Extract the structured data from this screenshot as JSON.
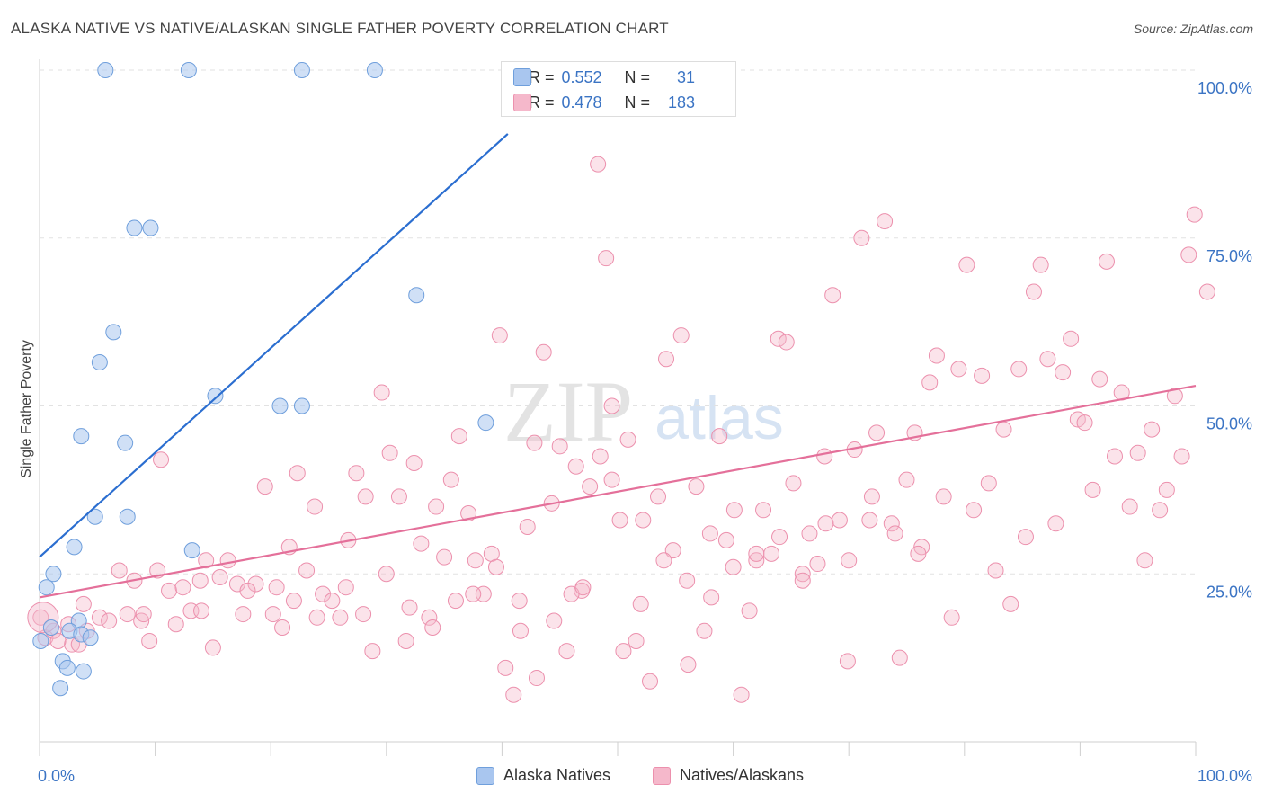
{
  "title": "ALASKA NATIVE VS NATIVE/ALASKAN SINGLE FATHER POVERTY CORRELATION CHART",
  "source": "Source: ZipAtlas.com",
  "watermark": {
    "zip": "ZIP",
    "atlas": "atlas"
  },
  "legend": {
    "r_label": "R =",
    "n_label": "N =",
    "rows": [
      {
        "r": "0.552",
        "n": "31"
      },
      {
        "r": "0.478",
        "n": "183"
      }
    ]
  },
  "colors": {
    "blue_fill": "#a9c6ef",
    "blue_stroke": "#6f9fdc",
    "blue_line": "#2b6ed0",
    "pink_fill": "#f5b8cb",
    "pink_stroke": "#ec90ad",
    "pink_line": "#e4709a",
    "tick_label": "#3b74c4"
  },
  "chart_data": {
    "type": "scatter",
    "title": "ALASKA NATIVE VS NATIVE/ALASKAN SINGLE FATHER POVERTY CORRELATION CHART",
    "xlabel": "",
    "ylabel": "Single Father Poverty",
    "xlim": [
      0,
      100
    ],
    "ylim": [
      0,
      100
    ],
    "x_tick_labels": [
      "0.0%",
      "100.0%"
    ],
    "y_tick_labels": [
      "25.0%",
      "50.0%",
      "75.0%",
      "100.0%"
    ],
    "y_ticks": [
      25,
      50,
      75,
      100
    ],
    "grid": "horizontal dashed",
    "legend_position": "top-center",
    "series": [
      {
        "name": "Alaska Natives",
        "r": 0.552,
        "n": 31,
        "trend": {
          "x": [
            0,
            40.5
          ],
          "y": [
            27.5,
            90.5
          ]
        },
        "points": [
          [
            5.7,
            100
          ],
          [
            12.9,
            100
          ],
          [
            22.7,
            100
          ],
          [
            29.0,
            100
          ],
          [
            8.2,
            76.5
          ],
          [
            9.6,
            76.5
          ],
          [
            6.4,
            61
          ],
          [
            5.2,
            56.5
          ],
          [
            32.6,
            66.5
          ],
          [
            15.2,
            51.5
          ],
          [
            20.8,
            50
          ],
          [
            22.7,
            50
          ],
          [
            3.6,
            45.5
          ],
          [
            7.4,
            44.5
          ],
          [
            38.6,
            47.5
          ],
          [
            4.8,
            33.5
          ],
          [
            7.6,
            33.5
          ],
          [
            3.0,
            29
          ],
          [
            13.2,
            28.5
          ],
          [
            1.2,
            25
          ],
          [
            0.6,
            23
          ],
          [
            1.0,
            17
          ],
          [
            3.4,
            18
          ],
          [
            2.6,
            16.5
          ],
          [
            3.6,
            16
          ],
          [
            4.4,
            15.5
          ],
          [
            0.1,
            15
          ],
          [
            2.0,
            12
          ],
          [
            2.4,
            11
          ],
          [
            3.8,
            10.5
          ],
          [
            1.8,
            8
          ]
        ]
      },
      {
        "name": "Natives/Alaskans",
        "r": 0.478,
        "n": 183,
        "trend": {
          "x": [
            0,
            100
          ],
          "y": [
            21.5,
            53
          ]
        },
        "points": [
          [
            0.1,
            18.5
          ],
          [
            0.5,
            15.5
          ],
          [
            1.2,
            16.5
          ],
          [
            2.5,
            17.5
          ],
          [
            3.8,
            20.5
          ],
          [
            4.1,
            16.5
          ],
          [
            5.2,
            18.5
          ],
          [
            6.0,
            18.0
          ],
          [
            6.9,
            25.5
          ],
          [
            7.6,
            19.0
          ],
          [
            8.2,
            24.0
          ],
          [
            8.8,
            18.0
          ],
          [
            9.5,
            15.0
          ],
          [
            10.2,
            25.5
          ],
          [
            10.5,
            42.0
          ],
          [
            11.2,
            22.5
          ],
          [
            11.8,
            17.5
          ],
          [
            12.4,
            23.0
          ],
          [
            13.1,
            19.5
          ],
          [
            13.9,
            24.0
          ],
          [
            14.4,
            27.0
          ],
          [
            15.0,
            14.0
          ],
          [
            15.6,
            24.5
          ],
          [
            16.3,
            27.0
          ],
          [
            17.1,
            23.5
          ],
          [
            17.6,
            19.0
          ],
          [
            18.7,
            23.5
          ],
          [
            19.5,
            38.0
          ],
          [
            20.2,
            19.0
          ],
          [
            21.0,
            17.0
          ],
          [
            21.6,
            29.0
          ],
          [
            22.3,
            40.0
          ],
          [
            23.1,
            25.5
          ],
          [
            23.8,
            35.0
          ],
          [
            24.5,
            22.0
          ],
          [
            25.3,
            21.0
          ],
          [
            26.0,
            18.5
          ],
          [
            26.7,
            30.0
          ],
          [
            27.4,
            40.0
          ],
          [
            28.2,
            36.5
          ],
          [
            28.8,
            13.5
          ],
          [
            29.6,
            52.0
          ],
          [
            30.3,
            43.0
          ],
          [
            31.1,
            36.5
          ],
          [
            31.7,
            15.0
          ],
          [
            32.4,
            41.5
          ],
          [
            33.0,
            29.5
          ],
          [
            33.7,
            18.5
          ],
          [
            34.3,
            35.0
          ],
          [
            35.0,
            27.5
          ],
          [
            35.6,
            39.0
          ],
          [
            36.3,
            45.5
          ],
          [
            37.1,
            34.0
          ],
          [
            37.7,
            27.0
          ],
          [
            38.4,
            22.0
          ],
          [
            39.1,
            28.0
          ],
          [
            39.8,
            60.5
          ],
          [
            40.3,
            11.0
          ],
          [
            41.0,
            7.0
          ],
          [
            41.6,
            16.5
          ],
          [
            42.2,
            32.0
          ],
          [
            42.8,
            44.5
          ],
          [
            43.6,
            58.0
          ],
          [
            44.3,
            35.5
          ],
          [
            45.0,
            44.0
          ],
          [
            45.6,
            13.5
          ],
          [
            46.4,
            41.0
          ],
          [
            46.9,
            22.5
          ],
          [
            47.6,
            38.0
          ],
          [
            48.3,
            86.0
          ],
          [
            49.0,
            72.0
          ],
          [
            49.5,
            50.0
          ],
          [
            50.2,
            33.0
          ],
          [
            50.9,
            45.0
          ],
          [
            51.6,
            15.0
          ],
          [
            52.2,
            33.0
          ],
          [
            52.8,
            9.0
          ],
          [
            53.5,
            36.5
          ],
          [
            54.2,
            57.0
          ],
          [
            54.8,
            28.5
          ],
          [
            55.5,
            60.5
          ],
          [
            56.1,
            11.5
          ],
          [
            56.8,
            38.0
          ],
          [
            57.5,
            16.5
          ],
          [
            58.1,
            21.5
          ],
          [
            58.8,
            45.5
          ],
          [
            59.4,
            30.0
          ],
          [
            60.1,
            34.5
          ],
          [
            60.7,
            7.0
          ],
          [
            61.4,
            19.5
          ],
          [
            62.0,
            27.0
          ],
          [
            62.6,
            34.5
          ],
          [
            63.3,
            28.0
          ],
          [
            63.9,
            60.0
          ],
          [
            64.6,
            59.5
          ],
          [
            65.2,
            38.5
          ],
          [
            66.0,
            25.0
          ],
          [
            66.6,
            31.0
          ],
          [
            67.3,
            26.5
          ],
          [
            67.9,
            42.5
          ],
          [
            68.6,
            66.5
          ],
          [
            69.2,
            33.0
          ],
          [
            69.9,
            12.0
          ],
          [
            70.5,
            43.5
          ],
          [
            71.1,
            75.0
          ],
          [
            71.8,
            33.0
          ],
          [
            72.4,
            46.0
          ],
          [
            73.1,
            77.5
          ],
          [
            73.7,
            32.5
          ],
          [
            74.4,
            12.5
          ],
          [
            75.0,
            39.0
          ],
          [
            75.7,
            46.0
          ],
          [
            76.3,
            29.0
          ],
          [
            77.0,
            53.5
          ],
          [
            77.6,
            57.5
          ],
          [
            78.2,
            36.5
          ],
          [
            78.9,
            18.5
          ],
          [
            79.5,
            55.5
          ],
          [
            80.2,
            71.0
          ],
          [
            80.8,
            34.5
          ],
          [
            81.5,
            54.5
          ],
          [
            82.1,
            38.5
          ],
          [
            82.7,
            25.5
          ],
          [
            83.4,
            46.5
          ],
          [
            84.0,
            20.5
          ],
          [
            84.7,
            55.5
          ],
          [
            85.3,
            30.5
          ],
          [
            86.0,
            67.0
          ],
          [
            86.6,
            71.0
          ],
          [
            87.2,
            57.0
          ],
          [
            87.9,
            32.5
          ],
          [
            88.5,
            55.0
          ],
          [
            89.2,
            60.0
          ],
          [
            89.8,
            48.0
          ],
          [
            90.4,
            47.5
          ],
          [
            91.1,
            37.5
          ],
          [
            91.7,
            54.0
          ],
          [
            92.3,
            71.5
          ],
          [
            93.0,
            42.5
          ],
          [
            93.6,
            52.0
          ],
          [
            94.3,
            35.0
          ],
          [
            95.0,
            43.0
          ],
          [
            95.6,
            27.0
          ],
          [
            96.2,
            46.5
          ],
          [
            96.9,
            34.5
          ],
          [
            97.5,
            37.5
          ],
          [
            98.2,
            51.5
          ],
          [
            98.8,
            42.5
          ],
          [
            99.4,
            72.5
          ],
          [
            99.9,
            78.5
          ],
          [
            101.0,
            67.0
          ],
          [
            2.8,
            14.5
          ],
          [
            3.4,
            14.5
          ],
          [
            1.6,
            15.0
          ],
          [
            9.0,
            19.0
          ],
          [
            14.0,
            19.5
          ],
          [
            18.0,
            22.5
          ],
          [
            20.5,
            23.0
          ],
          [
            22.0,
            21.0
          ],
          [
            24.0,
            18.5
          ],
          [
            26.5,
            23.0
          ],
          [
            28.0,
            19.0
          ],
          [
            30.0,
            25.0
          ],
          [
            32.0,
            20.0
          ],
          [
            34.0,
            17.0
          ],
          [
            36.0,
            21.0
          ],
          [
            37.5,
            22.0
          ],
          [
            39.5,
            26.0
          ],
          [
            41.5,
            21.0
          ],
          [
            43.0,
            9.5
          ],
          [
            44.5,
            18.0
          ],
          [
            46.0,
            22.0
          ],
          [
            47.0,
            23.0
          ],
          [
            48.5,
            42.5
          ],
          [
            49.5,
            39.0
          ],
          [
            50.5,
            13.5
          ],
          [
            52.0,
            20.5
          ],
          [
            54.0,
            27.0
          ],
          [
            56.0,
            24.0
          ],
          [
            58.0,
            31.0
          ],
          [
            60.0,
            26.0
          ],
          [
            62.0,
            28.0
          ],
          [
            64.0,
            30.5
          ],
          [
            66.0,
            24.0
          ],
          [
            68.0,
            32.5
          ],
          [
            70.0,
            27.0
          ],
          [
            72.0,
            36.5
          ],
          [
            74.0,
            31.0
          ],
          [
            76.0,
            28.0
          ]
        ]
      }
    ]
  },
  "axis_labels_text": {
    "x_left": "0.0%",
    "x_right": "100.0%"
  },
  "bottom_legend": [
    "Alaska Natives",
    "Natives/Alaskans"
  ]
}
